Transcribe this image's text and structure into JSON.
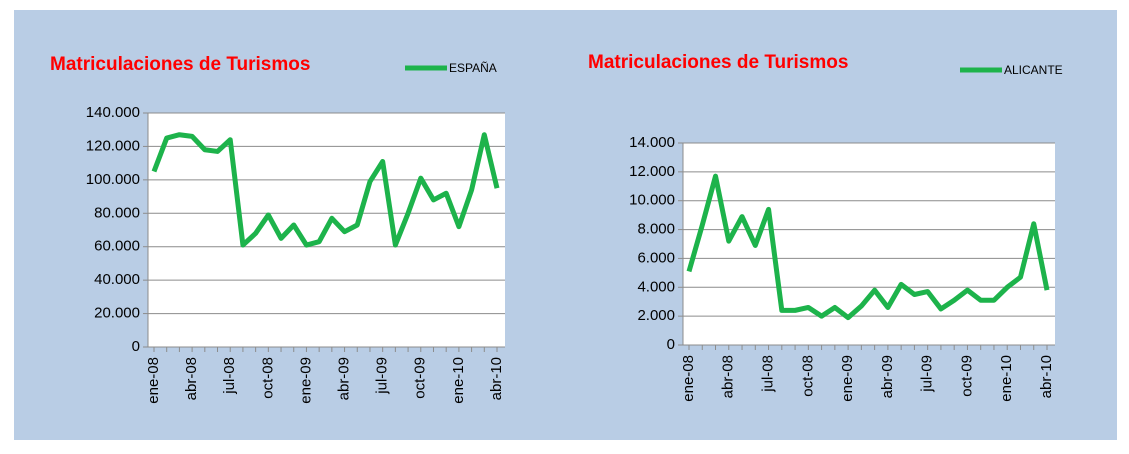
{
  "chart_data": [
    {
      "type": "line",
      "title": "Matriculaciones de Turismos",
      "categories": [
        "ene-08",
        null,
        null,
        "abr-08",
        null,
        null,
        "jul-08",
        null,
        null,
        "oct-08",
        null,
        null,
        "ene-09",
        null,
        null,
        "abr-09",
        null,
        null,
        "jul-09",
        null,
        null,
        "oct-09",
        null,
        null,
        "ene-10",
        null,
        null,
        "abr-10"
      ],
      "series": [
        {
          "name": "ESPAÑA",
          "color": "#1db34b",
          "values": [
            105000,
            125000,
            127000,
            126000,
            118000,
            117000,
            124000,
            61000,
            68000,
            79000,
            65000,
            73000,
            61000,
            63000,
            77000,
            69000,
            73000,
            99000,
            111000,
            61000,
            80000,
            101000,
            88000,
            92000,
            72000,
            94000,
            127000,
            95000
          ]
        }
      ],
      "ylim": [
        0,
        140000
      ],
      "yticks": [
        0,
        {
          "value": 20000,
          "label": "20.000"
        },
        {
          "value": 40000,
          "label": "40.000"
        },
        {
          "value": 60000,
          "label": "60.000"
        },
        {
          "value": 80000,
          "label": "80.000"
        },
        {
          "value": 100000,
          "label": "100.000"
        },
        {
          "value": 120000,
          "label": "120.000"
        },
        {
          "value": 140000,
          "label": "140.000"
        }
      ],
      "grid": true
    },
    {
      "type": "line",
      "title": "Matriculaciones de Turismos",
      "categories": [
        "ene-08",
        null,
        null,
        "abr-08",
        null,
        null,
        "jul-08",
        null,
        null,
        "oct-08",
        null,
        null,
        "ene-09",
        null,
        null,
        "abr-09",
        null,
        null,
        "jul-09",
        null,
        null,
        "oct-09",
        null,
        null,
        "ene-10",
        null,
        null,
        "abr-10"
      ],
      "series": [
        {
          "name": "ALICANTE",
          "color": "#1db34b",
          "values": [
            5100,
            8300,
            11700,
            7200,
            8900,
            6900,
            9400,
            2400,
            2400,
            2600,
            2000,
            2600,
            1900,
            2700,
            3800,
            2600,
            4200,
            3500,
            3700,
            2500,
            3100,
            3800,
            3100,
            3100,
            4000,
            4700,
            8400,
            3800
          ]
        }
      ],
      "ylim": [
        0,
        14000
      ],
      "yticks": [
        0,
        {
          "value": 2000,
          "label": "2.000"
        },
        {
          "value": 4000,
          "label": "4.000"
        },
        {
          "value": 6000,
          "label": "6.000"
        },
        {
          "value": 8000,
          "label": "8.000"
        },
        {
          "value": 10000,
          "label": "10.000"
        },
        {
          "value": 12000,
          "label": "12.000"
        },
        {
          "value": 14000,
          "label": "14.000"
        }
      ],
      "grid": true
    }
  ]
}
